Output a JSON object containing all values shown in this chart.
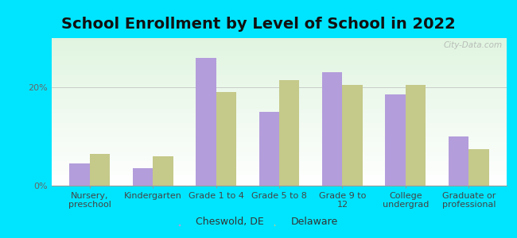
{
  "title": "School Enrollment by Level of School in 2022",
  "categories": [
    "Nursery,\npreschool",
    "Kindergarten",
    "Grade 1 to 4",
    "Grade 5 to 8",
    "Grade 9 to\n12",
    "College\nundergrad",
    "Graduate or\nprofessional"
  ],
  "cheswold": [
    4.5,
    3.5,
    26.0,
    15.0,
    23.0,
    18.5,
    10.0
  ],
  "delaware": [
    6.5,
    6.0,
    19.0,
    21.5,
    20.5,
    20.5,
    7.5
  ],
  "cheswold_color": "#b39ddb",
  "delaware_color": "#c5c98a",
  "background_color": "#00e5ff",
  "chart_bg_topleft": "#d4ecd4",
  "chart_bg_topright": "#c8e6c8",
  "chart_bg_bottom": "#f5fff5",
  "ylim": [
    0,
    30
  ],
  "yticks": [
    0,
    20
  ],
  "ytick_labels": [
    "0%",
    "20%"
  ],
  "legend_cheswold": "Cheswold, DE",
  "legend_delaware": "Delaware",
  "watermark": "City-Data.com",
  "title_fontsize": 14,
  "tick_fontsize": 8,
  "legend_fontsize": 9,
  "bar_width": 0.32
}
